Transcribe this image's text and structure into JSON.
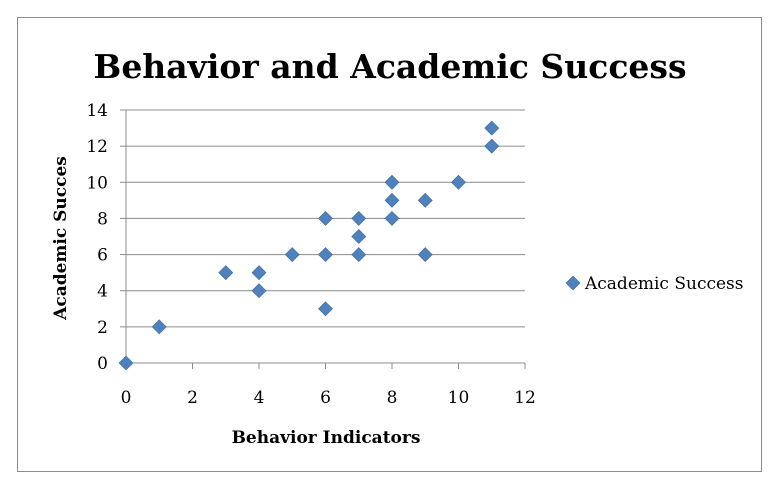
{
  "chart_data": {
    "type": "scatter",
    "title": "Behavior and Academic Success",
    "xlabel": "Behavior Indicators",
    "ylabel": "Academic Succes",
    "xlim": [
      0,
      12
    ],
    "ylim": [
      0,
      14
    ],
    "xticks": [
      0,
      2,
      4,
      6,
      8,
      10,
      12
    ],
    "yticks": [
      0,
      2,
      4,
      6,
      8,
      10,
      12,
      14
    ],
    "grid": "horizontal",
    "legend_position": "right",
    "series": [
      {
        "name": "Academic Success",
        "color": "#4f81bd",
        "marker": "diamond",
        "points": [
          {
            "x": 0,
            "y": 0
          },
          {
            "x": 1,
            "y": 2
          },
          {
            "x": 3,
            "y": 5
          },
          {
            "x": 4,
            "y": 5
          },
          {
            "x": 4,
            "y": 4
          },
          {
            "x": 5,
            "y": 6
          },
          {
            "x": 6,
            "y": 8
          },
          {
            "x": 6,
            "y": 6
          },
          {
            "x": 6,
            "y": 3
          },
          {
            "x": 7,
            "y": 8
          },
          {
            "x": 7,
            "y": 7
          },
          {
            "x": 7,
            "y": 6
          },
          {
            "x": 8,
            "y": 10
          },
          {
            "x": 8,
            "y": 9
          },
          {
            "x": 8,
            "y": 8
          },
          {
            "x": 9,
            "y": 9
          },
          {
            "x": 9,
            "y": 6
          },
          {
            "x": 10,
            "y": 10
          },
          {
            "x": 11,
            "y": 13
          },
          {
            "x": 11,
            "y": 12
          }
        ]
      }
    ]
  }
}
